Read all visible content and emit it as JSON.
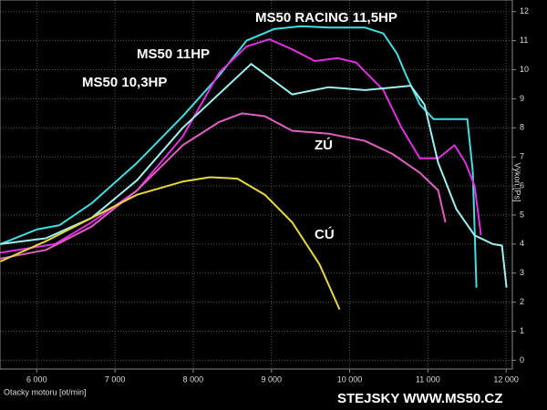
{
  "chart_data": {
    "type": "line",
    "xlabel": "Otacky motoru [ot/min]",
    "ylabel": "Výkon [Ps]",
    "footer": "STEJSKY WWW.MS50.CZ",
    "xlim": [
      5530,
      12080
    ],
    "ylim": [
      -0.3,
      12.4
    ],
    "xticks": [
      {
        "value": 6000,
        "label": "6 000"
      },
      {
        "value": 7000,
        "label": "7 000"
      },
      {
        "value": 8000,
        "label": "8 000"
      },
      {
        "value": 9000,
        "label": "9 000"
      },
      {
        "value": 10000,
        "label": "10 000"
      },
      {
        "value": 11000,
        "label": "11 000"
      },
      {
        "value": 12000,
        "label": "12 000"
      }
    ],
    "yticks": [
      0,
      1,
      2,
      3,
      4,
      5,
      6,
      7,
      8,
      9,
      10,
      11,
      12
    ],
    "grid": true,
    "series": [
      {
        "name": "MS50 RACING 11,5HP",
        "color": "#40e0e0",
        "x": [
          5534,
          6000,
          6292,
          6700,
          7283,
          7866,
          8332,
          8682,
          9032,
          9382,
          9732,
          10198,
          10431,
          10606,
          10723,
          10898,
          11073,
          11364,
          11504,
          11574,
          11621
        ],
        "values": [
          4.0,
          4.5,
          4.65,
          5.4,
          6.8,
          8.4,
          9.8,
          11.0,
          11.4,
          11.5,
          11.45,
          11.45,
          11.25,
          10.55,
          9.8,
          8.8,
          8.3,
          8.3,
          8.3,
          6.5,
          2.5
        ]
      },
      {
        "name": "MS50 11HP",
        "color": "#e030e0",
        "x": [
          5534,
          6234,
          6700,
          7283,
          7866,
          8332,
          8682,
          8974,
          9265,
          9557,
          9848,
          10081,
          10431,
          10664,
          10898,
          11131,
          11341,
          11481,
          11597,
          11679
        ],
        "values": [
          3.7,
          4.0,
          4.75,
          5.85,
          7.7,
          9.9,
          10.8,
          11.05,
          10.7,
          10.3,
          10.4,
          10.25,
          9.3,
          8.0,
          6.95,
          6.95,
          7.4,
          6.8,
          6.0,
          4.3
        ]
      },
      {
        "name": "MS50 10,3HP",
        "color": "#a0f0f0",
        "x": [
          5534,
          6117,
          6700,
          7283,
          7866,
          8741,
          9265,
          9732,
          10198,
          10781,
          10956,
          11131,
          11364,
          11597,
          11830,
          11947,
          12005
        ],
        "values": [
          4.0,
          4.2,
          4.9,
          6.2,
          8.0,
          10.2,
          9.15,
          9.4,
          9.3,
          9.45,
          8.8,
          6.8,
          5.2,
          4.3,
          4.0,
          3.95,
          2.5
        ]
      },
      {
        "name": "ZÚ",
        "color": "#e060c0",
        "x": [
          5534,
          6117,
          6700,
          7283,
          7866,
          8332,
          8624,
          8916,
          9265,
          9732,
          10198,
          10548,
          10898,
          11131,
          11224
        ],
        "values": [
          3.5,
          3.8,
          4.6,
          5.85,
          7.4,
          8.2,
          8.5,
          8.4,
          7.9,
          7.8,
          7.55,
          7.1,
          6.45,
          5.85,
          4.75
        ]
      },
      {
        "name": "CÚ",
        "color": "#e8d840",
        "x": [
          5534,
          6117,
          6700,
          7283,
          7866,
          8216,
          8566,
          8916,
          9265,
          9615,
          9871
        ],
        "values": [
          3.4,
          4.1,
          4.9,
          5.7,
          6.15,
          6.3,
          6.25,
          5.7,
          4.75,
          3.3,
          1.75
        ]
      }
    ]
  }
}
